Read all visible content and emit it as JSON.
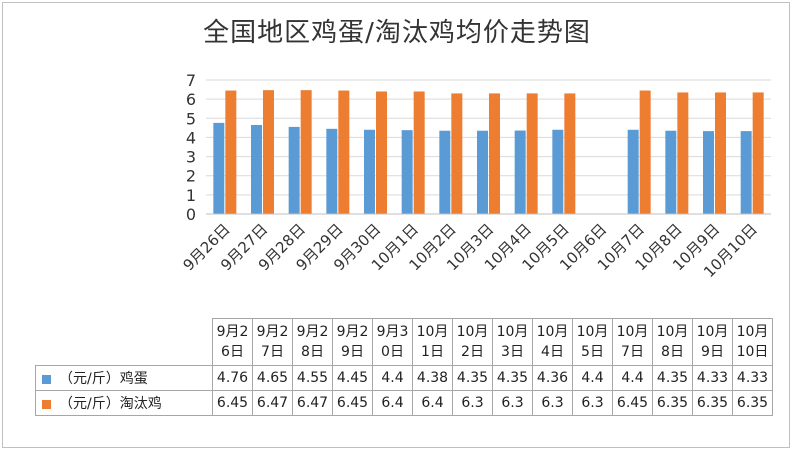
{
  "chart_data": {
    "type": "bar",
    "title": "全国地区鸡蛋/淘汰鸡均价走势图",
    "categories": [
      "9月26日",
      "9月27日",
      "9月28日",
      "9月29日",
      "9月30日",
      "10月1日",
      "10月2日",
      "10月3日",
      "10月4日",
      "10月5日",
      "10月6日",
      "10月7日",
      "10月8日",
      "10月9日",
      "10月10日"
    ],
    "table_headers": [
      "9月26日",
      "9月27日",
      "9月28日",
      "9月29日",
      "9月30日",
      "10月1日",
      "10月2日",
      "10月3日",
      "10月4日",
      "10月5日",
      "10月7日",
      "10月8日",
      "10月9日",
      "10月10日"
    ],
    "series": [
      {
        "name": "（元/斤）鸡蛋",
        "color": "#5b9bd5",
        "values": [
          4.76,
          4.65,
          4.55,
          4.45,
          4.4,
          4.38,
          4.35,
          4.35,
          4.36,
          4.4,
          null,
          4.4,
          4.35,
          4.33,
          4.33
        ],
        "table_values": [
          "4.76",
          "4.65",
          "4.55",
          "4.45",
          "4.4",
          "4.38",
          "4.35",
          "4.35",
          "4.36",
          "4.4",
          "4.4",
          "4.35",
          "4.33",
          "4.33"
        ]
      },
      {
        "name": "（元/斤）淘汰鸡",
        "color": "#ed7d31",
        "values": [
          6.45,
          6.47,
          6.47,
          6.45,
          6.4,
          6.4,
          6.3,
          6.3,
          6.3,
          6.3,
          null,
          6.45,
          6.35,
          6.35,
          6.35
        ],
        "table_values": [
          "6.45",
          "6.47",
          "6.47",
          "6.45",
          "6.4",
          "6.4",
          "6.3",
          "6.3",
          "6.3",
          "6.3",
          "6.45",
          "6.35",
          "6.35",
          "6.35"
        ]
      }
    ],
    "ylim": [
      0,
      7
    ],
    "yticks": [
      "0",
      "1",
      "2",
      "3",
      "4",
      "5",
      "6",
      "7"
    ],
    "grid": true,
    "legend": "table"
  }
}
